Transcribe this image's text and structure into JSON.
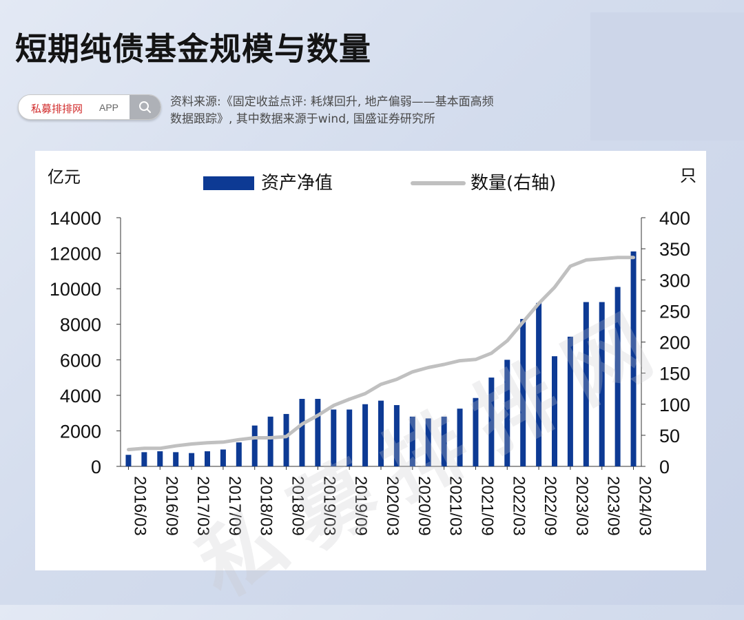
{
  "header": {
    "title": "短期纯债基金规模与数量"
  },
  "search": {
    "brand": "私募排排网",
    "app": "APP",
    "icon": "search-icon"
  },
  "source": {
    "line1": "资料来源:《固定收益点评: 耗煤回升, 地产偏弱——基本面高频",
    "line2": "数据跟踪》, 其中数据来源于wind, 国盛证券研究所"
  },
  "watermark": "私募排排网",
  "chart_data": {
    "type": "bar",
    "title": "",
    "y_left_unit": "亿元",
    "y_right_unit": "只",
    "ylim_left": [
      0,
      14000
    ],
    "ylim_right": [
      0,
      400
    ],
    "yticks_left": [
      "0",
      "2000",
      "4000",
      "6000",
      "8000",
      "10000",
      "12000",
      "14000"
    ],
    "yticks_right": [
      "0",
      "50",
      "100",
      "150",
      "200",
      "250",
      "300",
      "350",
      "400"
    ],
    "xtick_labels": [
      "2016/03",
      "2016/09",
      "2017/03",
      "2017/09",
      "2018/03",
      "2018/09",
      "2019/03",
      "2019/09",
      "2020/03",
      "2020/09",
      "2021/03",
      "2021/09",
      "2022/03",
      "2022/09",
      "2023/03",
      "2023/09",
      "2024/03"
    ],
    "legend": {
      "placement": "top"
    },
    "categories": [
      "2016/03",
      "2016/06",
      "2016/09",
      "2016/12",
      "2017/03",
      "2017/06",
      "2017/09",
      "2017/12",
      "2018/03",
      "2018/06",
      "2018/09",
      "2018/12",
      "2019/03",
      "2019/06",
      "2019/09",
      "2019/12",
      "2020/03",
      "2020/06",
      "2020/09",
      "2020/12",
      "2021/03",
      "2021/06",
      "2021/09",
      "2021/12",
      "2022/03",
      "2022/06",
      "2022/09",
      "2022/12",
      "2023/03",
      "2023/06",
      "2023/09",
      "2023/12",
      "2024/03"
    ],
    "series": [
      {
        "name": "资产净值",
        "type": "bar",
        "axis": "left",
        "color": "#0d3a94",
        "values": [
          650,
          800,
          850,
          800,
          750,
          850,
          950,
          1350,
          2300,
          2800,
          2950,
          3800,
          3800,
          3200,
          3200,
          3500,
          3700,
          3450,
          2800,
          2700,
          2800,
          3250,
          3850,
          5000,
          6000,
          8300,
          9200,
          6200,
          7300,
          9250,
          9250,
          10100,
          12100
        ]
      },
      {
        "name": "数量(右轴)",
        "type": "line",
        "axis": "right",
        "color": "#c0c0c0",
        "values": [
          27,
          29,
          29,
          33,
          36,
          38,
          39,
          43,
          46,
          46,
          48,
          68,
          82,
          98,
          108,
          117,
          132,
          140,
          152,
          159,
          164,
          170,
          172,
          182,
          202,
          232,
          262,
          288,
          322,
          332,
          334,
          336,
          336
        ]
      }
    ]
  }
}
